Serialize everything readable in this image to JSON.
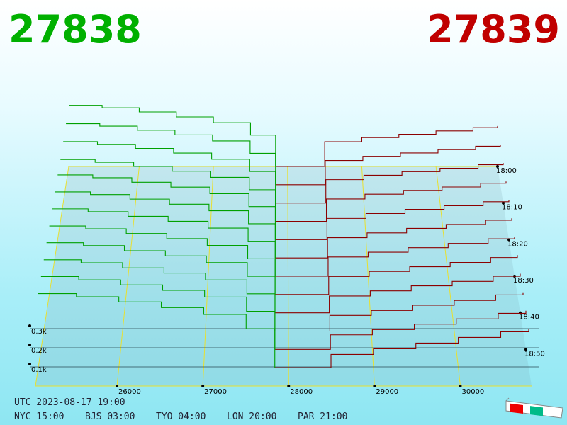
{
  "chart_data": {
    "type": "depth3d",
    "best_bid": "27838",
    "best_ask": "27839",
    "footer": {
      "utc": "UTC 2023-08-17 19:00",
      "zones": [
        "NYC 15:00",
        "BJS 03:00",
        "TYO 04:00",
        "LON 20:00",
        "PAR 21:00"
      ]
    },
    "xlim": [
      25050,
      30830
    ],
    "xticks": [
      26000,
      27000,
      28000,
      29000,
      30000
    ],
    "ylim": [
      0,
      400
    ],
    "yticks": [
      {
        "value": 100,
        "label": "0.1k"
      },
      {
        "value": 200,
        "label": "0.2k"
      },
      {
        "value": 300,
        "label": "0.3k"
      }
    ],
    "zlim": [
      1080,
      1140
    ],
    "zticks": [
      {
        "value": 1080,
        "label": "18:00"
      },
      {
        "value": 1090,
        "label": "18:10"
      },
      {
        "value": 1100,
        "label": "18:20"
      },
      {
        "value": 1110,
        "label": "18:30"
      },
      {
        "value": 1120,
        "label": "18:40"
      },
      {
        "value": 1130,
        "label": "18:50"
      }
    ],
    "bid_color": "#00a000",
    "ask_color": "#8b0000",
    "bid_x": [
      25050,
      25500,
      26000,
      26500,
      27000,
      27500,
      27838
    ],
    "ask_x": [
      27839,
      28500,
      29000,
      29500,
      30000,
      30500,
      30830
    ],
    "series": [
      {
        "z": 1080,
        "bids": [
          370,
          355,
          330,
          300,
          265,
          190,
          0
        ],
        "asks": [
          0,
          150,
          175,
          195,
          215,
          235,
          245
        ]
      },
      {
        "z": 1085,
        "bids": [
          365,
          350,
          326,
          298,
          262,
          188,
          0
        ],
        "asks": [
          0,
          145,
          170,
          190,
          210,
          230,
          240
        ]
      },
      {
        "z": 1090,
        "bids": [
          362,
          346,
          322,
          295,
          258,
          186,
          0
        ],
        "asks": [
          0,
          138,
          164,
          185,
          205,
          226,
          236
        ]
      },
      {
        "z": 1095,
        "bids": [
          360,
          344,
          320,
          292,
          256,
          184,
          0
        ],
        "asks": [
          0,
          130,
          158,
          180,
          200,
          222,
          232
        ]
      },
      {
        "z": 1100,
        "bids": [
          372,
          356,
          330,
          302,
          264,
          190,
          0
        ],
        "asks": [
          0,
          122,
          150,
          174,
          195,
          218,
          228
        ]
      },
      {
        "z": 1105,
        "bids": [
          375,
          360,
          334,
          305,
          268,
          194,
          0
        ],
        "asks": [
          0,
          115,
          142,
          168,
          190,
          214,
          225
        ]
      },
      {
        "z": 1110,
        "bids": [
          378,
          362,
          336,
          308,
          270,
          196,
          0
        ],
        "asks": [
          0,
          108,
          135,
          160,
          184,
          210,
          222
        ]
      },
      {
        "z": 1115,
        "bids": [
          380,
          364,
          338,
          310,
          272,
          198,
          0
        ],
        "asks": [
          0,
          100,
          128,
          154,
          178,
          205,
          218
        ]
      },
      {
        "z": 1120,
        "bids": [
          384,
          368,
          340,
          312,
          275,
          200,
          0
        ],
        "asks": [
          0,
          92,
          120,
          148,
          172,
          200,
          214
        ]
      },
      {
        "z": 1125,
        "bids": [
          386,
          370,
          342,
          314,
          277,
          202,
          0
        ],
        "asks": [
          0,
          85,
          112,
          140,
          166,
          196,
          210
        ]
      },
      {
        "z": 1130,
        "bids": [
          390,
          372,
          345,
          316,
          280,
          204,
          0
        ],
        "asks": [
          0,
          78,
          106,
          135,
          163,
          193,
          207
        ]
      },
      {
        "z": 1135,
        "bids": [
          392,
          375,
          348,
          318,
          282,
          206,
          0
        ],
        "asks": [
          0,
          70,
          100,
          130,
          160,
          190,
          205
        ]
      }
    ]
  }
}
